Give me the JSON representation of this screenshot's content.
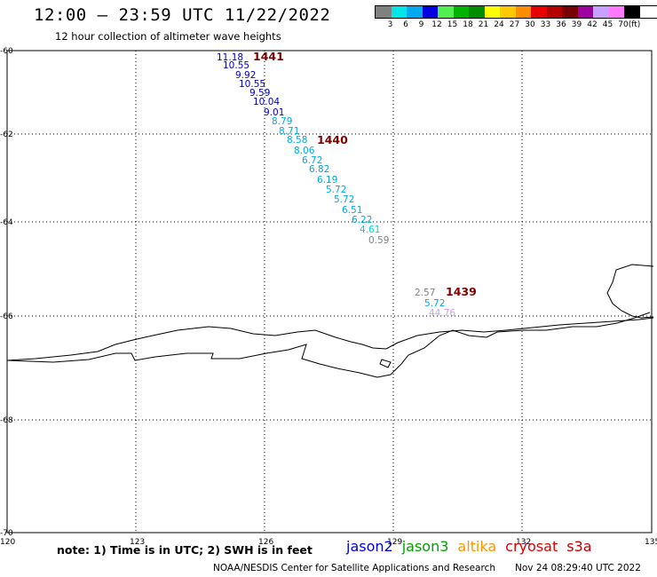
{
  "title": "12:00 – 23:59 UTC 11/22/2022",
  "subtitle": "12 hour collection of altimeter wave heights",
  "legend": {
    "colors": [
      "#808080",
      "#00e5e5",
      "#00a8f0",
      "#0000e0",
      "#50f050",
      "#00b400",
      "#008c00",
      "#ffff00",
      "#ffc800",
      "#ff8c00",
      "#e60000",
      "#b40000",
      "#780000",
      "#a000a0",
      "#c8a0ff",
      "#ff78ff",
      "#000000"
    ],
    "labels": [
      "3",
      "6",
      "9",
      "12",
      "15",
      "18",
      "21",
      "24",
      "27",
      "30",
      "33",
      "36",
      "39",
      "42",
      "45",
      "70",
      "(ft)"
    ]
  },
  "axes": {
    "lon_ticks": [
      "120",
      "123",
      "126",
      "129",
      "132",
      "135"
    ],
    "lat_ticks": [
      "-60",
      "-62",
      "-64",
      "-66",
      "-68",
      "-70"
    ]
  },
  "passes": [
    {
      "id": "1441",
      "color": "#800000"
    },
    {
      "id": "1440",
      "color": "#800000"
    },
    {
      "id": "1439",
      "color": "#800000"
    }
  ],
  "observations": [
    {
      "value": "11.18",
      "color": "#0000c8"
    },
    {
      "value": "10.55",
      "color": "#0000c8"
    },
    {
      "value": "9.92",
      "color": "#0000c8"
    },
    {
      "value": "10.55",
      "color": "#0000c8"
    },
    {
      "value": "9.59",
      "color": "#0000c8"
    },
    {
      "value": "10.04",
      "color": "#0000c8"
    },
    {
      "value": "9.01",
      "color": "#0000c8"
    },
    {
      "value": "8.79",
      "color": "#00a8e8"
    },
    {
      "value": "8.71",
      "color": "#00a8e8"
    },
    {
      "value": "8.58",
      "color": "#00a8e8"
    },
    {
      "value": "8.06",
      "color": "#00a8e8"
    },
    {
      "value": "6.72",
      "color": "#00a8e8"
    },
    {
      "value": "6.82",
      "color": "#00a8e8"
    },
    {
      "value": "6.19",
      "color": "#00a8e8"
    },
    {
      "value": "5.72",
      "color": "#00a8e8"
    },
    {
      "value": "5.72",
      "color": "#00a8e8"
    },
    {
      "value": "6.51",
      "color": "#00a8e8"
    },
    {
      "value": "6.22",
      "color": "#00a8e8"
    },
    {
      "value": "4.61",
      "color": "#00d8d8"
    },
    {
      "value": "0.59",
      "color": "#808080"
    },
    {
      "value": "2.57",
      "color": "#808080"
    },
    {
      "value": "5.72",
      "color": "#00a8e8"
    },
    {
      "value": "44.76",
      "color": "#c8a0ff"
    }
  ],
  "footer": {
    "note": "note: 1) Time is in UTC; 2) SWH is in feet",
    "missions": [
      {
        "name": "jason2",
        "color": "#0000e0"
      },
      {
        "name": "jason3",
        "color": "#00a000"
      },
      {
        "name": "altika",
        "color": "#ff9600"
      },
      {
        "name": "cryosat",
        "color": "#e00000"
      },
      {
        "name": "s3a",
        "color": "#c00000"
      }
    ],
    "credit": "NOAA/NESDIS Center for Satellite Applications and Research",
    "timestamp": "Nov 24 08:29:40 UTC 2022"
  }
}
